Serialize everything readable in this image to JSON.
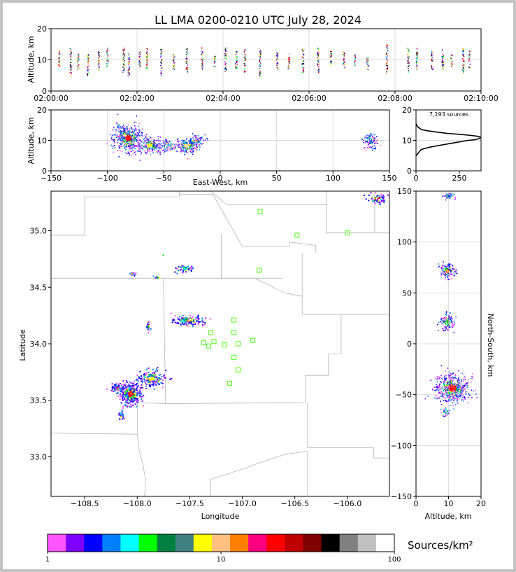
{
  "title": "LL LMA 0200-0210 UTC July 28, 2024",
  "chart_data": [
    {
      "type": "scatter",
      "panel": "altitude-time",
      "ylabel": "Altitude, km",
      "ylim": [
        0,
        20
      ],
      "y_ticks": [
        0,
        10,
        20
      ],
      "x_ticks": [
        "02:00:00",
        "02:02:00",
        "02:04:00",
        "02:06:00",
        "02:08:00",
        "02:10:00"
      ],
      "xlim_minutes": [
        0,
        10
      ],
      "grid": true,
      "columns": [
        {
          "t": 0.18,
          "lo": 7,
          "hi": 13
        },
        {
          "t": 0.45,
          "lo": 5,
          "hi": 14
        },
        {
          "t": 0.62,
          "lo": 7,
          "hi": 12
        },
        {
          "t": 0.85,
          "lo": 5,
          "hi": 12
        },
        {
          "t": 1.1,
          "lo": 7,
          "hi": 13
        },
        {
          "t": 1.3,
          "lo": 8,
          "hi": 14
        },
        {
          "t": 1.68,
          "lo": 6,
          "hi": 14
        },
        {
          "t": 1.8,
          "lo": 5,
          "hi": 13
        },
        {
          "t": 2.05,
          "lo": 8,
          "hi": 13
        },
        {
          "t": 2.22,
          "lo": 7,
          "hi": 14
        },
        {
          "t": 2.55,
          "lo": 5,
          "hi": 14
        },
        {
          "t": 2.85,
          "lo": 7,
          "hi": 12
        },
        {
          "t": 3.15,
          "lo": 6,
          "hi": 14
        },
        {
          "t": 3.5,
          "lo": 7,
          "hi": 14
        },
        {
          "t": 3.8,
          "lo": 8,
          "hi": 12
        },
        {
          "t": 4.05,
          "lo": 6,
          "hi": 14
        },
        {
          "t": 4.3,
          "lo": 7,
          "hi": 13
        },
        {
          "t": 4.5,
          "lo": 6,
          "hi": 14
        },
        {
          "t": 4.85,
          "lo": 5,
          "hi": 14
        },
        {
          "t": 5.25,
          "lo": 7,
          "hi": 13
        },
        {
          "t": 5.52,
          "lo": 7,
          "hi": 12
        },
        {
          "t": 5.85,
          "lo": 6,
          "hi": 14
        },
        {
          "t": 6.2,
          "lo": 6,
          "hi": 14
        },
        {
          "t": 6.5,
          "lo": 8,
          "hi": 13
        },
        {
          "t": 6.8,
          "lo": 7,
          "hi": 13
        },
        {
          "t": 7.05,
          "lo": 8,
          "hi": 12
        },
        {
          "t": 7.35,
          "lo": 7,
          "hi": 11
        },
        {
          "t": 7.8,
          "lo": 6,
          "hi": 15
        },
        {
          "t": 8.3,
          "lo": 6,
          "hi": 14
        },
        {
          "t": 8.5,
          "lo": 7,
          "hi": 14
        },
        {
          "t": 8.85,
          "lo": 7,
          "hi": 13
        },
        {
          "t": 9.1,
          "lo": 7,
          "hi": 14
        },
        {
          "t": 9.3,
          "lo": 8,
          "hi": 12
        },
        {
          "t": 9.58,
          "lo": 6,
          "hi": 14
        },
        {
          "t": 9.72,
          "lo": 7,
          "hi": 13
        }
      ]
    },
    {
      "type": "scatter",
      "panel": "altitude-eastwest",
      "xlabel": "East-West, km",
      "ylabel": "Altitude, km",
      "xlim": [
        -150,
        150
      ],
      "ylim": [
        0,
        20
      ],
      "x_ticks": [
        -150,
        -100,
        -50,
        0,
        50,
        100,
        150
      ],
      "y_ticks": [
        0,
        10,
        20
      ],
      "grid": true,
      "clusters": [
        {
          "x": -82,
          "y": 11,
          "sx": 6,
          "sy": 2.2,
          "n": 460,
          "core": "#ff0000"
        },
        {
          "x": -63,
          "y": 8.5,
          "sx": 5,
          "sy": 1.3,
          "n": 200,
          "core": "#ffff00"
        },
        {
          "x": -47,
          "y": 8.5,
          "sx": 4,
          "sy": 1,
          "n": 90,
          "core": "#00a0ff"
        },
        {
          "x": -30,
          "y": 8.5,
          "sx": 5,
          "sy": 1.3,
          "n": 180,
          "core": "#ffcc66"
        },
        {
          "x": -22,
          "y": 10,
          "sx": 4,
          "sy": 0.7,
          "n": 70,
          "core": "#ff8000"
        },
        {
          "x": 133,
          "y": 10,
          "sx": 3,
          "sy": 1.2,
          "n": 90,
          "core": "#0050ff"
        }
      ]
    },
    {
      "type": "line",
      "panel": "altitude-histogram",
      "annotation": "7,193 sources",
      "xlim": [
        0,
        375
      ],
      "ylim": [
        0,
        20
      ],
      "x_ticks": [
        0,
        250
      ],
      "y_ticks": [
        0,
        10,
        20
      ],
      "x": [
        0,
        8,
        15,
        30,
        60,
        100,
        150,
        200,
        250,
        300,
        340,
        360,
        370,
        372,
        360,
        320,
        250,
        180,
        110,
        60,
        30,
        15,
        8,
        4,
        0
      ],
      "y": [
        5,
        5.5,
        6,
        7,
        7.5,
        8,
        8.5,
        9,
        9.5,
        10,
        10.2,
        10.5,
        10.8,
        11,
        11.3,
        11.6,
        12,
        12.3,
        12.8,
        13.2,
        13.6,
        14.2,
        14.6,
        15,
        15.5
      ]
    },
    {
      "type": "scatter",
      "panel": "plan-view",
      "xlabel": "Longitude",
      "ylabel": "Latitude",
      "xlim": [
        -108.82,
        -105.6
      ],
      "ylim": [
        32.65,
        35.35
      ],
      "x_ticks": [
        -108.5,
        -108.0,
        -107.5,
        -107.0,
        -106.5,
        -106.0
      ],
      "y_ticks": [
        33.0,
        33.5,
        34.0,
        34.5,
        35.0
      ],
      "stations": [
        [
          -106.83,
          35.17
        ],
        [
          -106.48,
          34.96
        ],
        [
          -106.0,
          34.98
        ],
        [
          -106.84,
          34.65
        ],
        [
          -107.08,
          34.21
        ],
        [
          -107.08,
          34.1
        ],
        [
          -107.3,
          34.1
        ],
        [
          -107.37,
          34.01
        ],
        [
          -107.32,
          33.98
        ],
        [
          -107.27,
          34.02
        ],
        [
          -107.17,
          33.99
        ],
        [
          -107.04,
          34.0
        ],
        [
          -106.9,
          34.03
        ],
        [
          -107.08,
          33.88
        ],
        [
          -107.04,
          33.77
        ],
        [
          -107.12,
          33.65
        ]
      ],
      "clusters": [
        {
          "x": -108.07,
          "y": 33.56,
          "sx": 0.05,
          "sy": 0.05,
          "n": 350,
          "core": "#ff0000"
        },
        {
          "x": -108.2,
          "y": 33.62,
          "sx": 0.03,
          "sy": 0.015,
          "n": 60,
          "core": "#ff0080"
        },
        {
          "x": -108.16,
          "y": 33.38,
          "sx": 0.015,
          "sy": 0.025,
          "n": 30,
          "core": "#0050ff"
        },
        {
          "x": -107.87,
          "y": 33.7,
          "sx": 0.07,
          "sy": 0.035,
          "n": 160,
          "core": "#ffff00"
        },
        {
          "x": -107.52,
          "y": 34.21,
          "sx": 0.07,
          "sy": 0.02,
          "n": 140,
          "core": "#ff8000"
        },
        {
          "x": -107.9,
          "y": 34.15,
          "sx": 0.01,
          "sy": 0.02,
          "n": 20,
          "core": "#00c000"
        },
        {
          "x": -107.55,
          "y": 34.67,
          "sx": 0.04,
          "sy": 0.015,
          "n": 50,
          "core": "#00ffff"
        },
        {
          "x": -108.05,
          "y": 34.62,
          "sx": 0.015,
          "sy": 0.008,
          "n": 20,
          "core": "#008040"
        },
        {
          "x": -107.81,
          "y": 34.59,
          "sx": 0.02,
          "sy": 0.005,
          "n": 10,
          "core": "#008040"
        },
        {
          "x": -107.76,
          "y": 34.79,
          "sx": 0.004,
          "sy": 0.004,
          "n": 2,
          "core": "#ff0080"
        },
        {
          "x": -105.72,
          "y": 35.29,
          "sx": 0.05,
          "sy": 0.02,
          "n": 60,
          "core": "#ff0000"
        }
      ],
      "boundaries": [
        [
          [
            -108.82,
            34.58
          ],
          [
            -106.62,
            34.58
          ],
          [
            -106.62,
            34.58
          ]
        ],
        [
          [
            -108.82,
            34.96
          ],
          [
            -108.5,
            34.96
          ],
          [
            -108.5,
            35.3
          ],
          [
            -107.6,
            35.3
          ],
          [
            -107.6,
            35.35
          ]
        ],
        [
          [
            -107.6,
            35.32
          ],
          [
            -107.28,
            35.32
          ],
          [
            -107.0,
            34.86
          ],
          [
            -106.55,
            34.86
          ],
          [
            -106.55,
            34.9
          ],
          [
            -106.3,
            34.87
          ],
          [
            -106.3,
            34.8
          ]
        ],
        [
          [
            -107.3,
            35.35
          ],
          [
            -107.15,
            35.23
          ],
          [
            -106.2,
            35.23
          ],
          [
            -106.2,
            35.35
          ]
        ],
        [
          [
            -106.2,
            35.23
          ],
          [
            -106.2,
            34.98
          ],
          [
            -105.6,
            34.98
          ]
        ],
        [
          [
            -105.74,
            35.35
          ],
          [
            -105.74,
            34.98
          ]
        ],
        [
          [
            -107.2,
            34.97
          ],
          [
            -107.2,
            34.58
          ],
          [
            -106.88,
            34.58
          ],
          [
            -106.6,
            34.45
          ],
          [
            -106.43,
            34.42
          ]
        ],
        [
          [
            -106.43,
            34.8
          ],
          [
            -106.43,
            34.26
          ],
          [
            -105.6,
            34.26
          ]
        ],
        [
          [
            -107.75,
            34.58
          ],
          [
            -107.73,
            33.47
          ],
          [
            -106.4,
            33.48
          ],
          [
            -106.4,
            33.72
          ],
          [
            -106.18,
            33.72
          ],
          [
            -106.18,
            33.91
          ],
          [
            -106.06,
            33.91
          ],
          [
            -106.06,
            34.26
          ]
        ],
        [
          [
            -108.82,
            33.21
          ],
          [
            -108.0,
            33.2
          ],
          [
            -107.98,
            33.05
          ],
          [
            -107.95,
            32.95
          ],
          [
            -107.92,
            32.8
          ],
          [
            -107.93,
            32.65
          ]
        ],
        [
          [
            -108.0,
            33.2
          ],
          [
            -108.0,
            33.48
          ],
          [
            -107.73,
            33.47
          ]
        ],
        [
          [
            -107.3,
            32.65
          ],
          [
            -107.3,
            32.8
          ],
          [
            -106.97,
            32.9
          ],
          [
            -106.83,
            32.95
          ],
          [
            -106.6,
            33.02
          ],
          [
            -106.38,
            33.05
          ]
        ],
        [
          [
            -106.38,
            33.48
          ],
          [
            -106.38,
            33.08
          ],
          [
            -105.75,
            33.08
          ],
          [
            -105.75,
            32.99
          ],
          [
            -105.6,
            32.99
          ]
        ],
        [
          [
            -106.38,
            33.05
          ],
          [
            -106.38,
            32.65
          ]
        ]
      ]
    },
    {
      "type": "scatter",
      "panel": "northsouth-altitude",
      "xlabel": "Altitude, km",
      "ylabel": "North-South, km",
      "xlim": [
        0,
        20
      ],
      "ylim": [
        -150,
        150
      ],
      "x_ticks": [
        0,
        10,
        20
      ],
      "y_ticks": [
        -150,
        -100,
        -50,
        0,
        50,
        100,
        150
      ],
      "grid": true,
      "clusters": [
        {
          "x": 10,
          "y": 146,
          "sx": 0.8,
          "sy": 1.5,
          "n": 50,
          "core": "#0050ff"
        },
        {
          "x": 9.5,
          "y": 72,
          "sx": 1.2,
          "sy": 3.5,
          "n": 150,
          "core": "#ff8000"
        },
        {
          "x": 9.5,
          "y": 22,
          "sx": 1.2,
          "sy": 4,
          "n": 110,
          "core": "#00c000"
        },
        {
          "x": 11,
          "y": -43,
          "sx": 2.5,
          "sy": 7,
          "n": 520,
          "core": "#ff0000"
        },
        {
          "x": 9,
          "y": -66,
          "sx": 0.8,
          "sy": 2.5,
          "n": 30,
          "core": "#00a0ff"
        }
      ]
    },
    {
      "type": "colorbar",
      "label": "Sources/km²",
      "scale": "log",
      "range": [
        1,
        100
      ],
      "tick_labels": [
        "1",
        "10",
        "100"
      ],
      "colors": [
        "#ff55ff",
        "#8000ff",
        "#0000ff",
        "#0080ff",
        "#00ffff",
        "#00ff00",
        "#008040",
        "#408080",
        "#ffff00",
        "#ffc080",
        "#ff8000",
        "#ff0080",
        "#ff0000",
        "#c00000",
        "#800000",
        "#000000",
        "#808080",
        "#c0c0c0",
        "#ffffff"
      ]
    }
  ]
}
